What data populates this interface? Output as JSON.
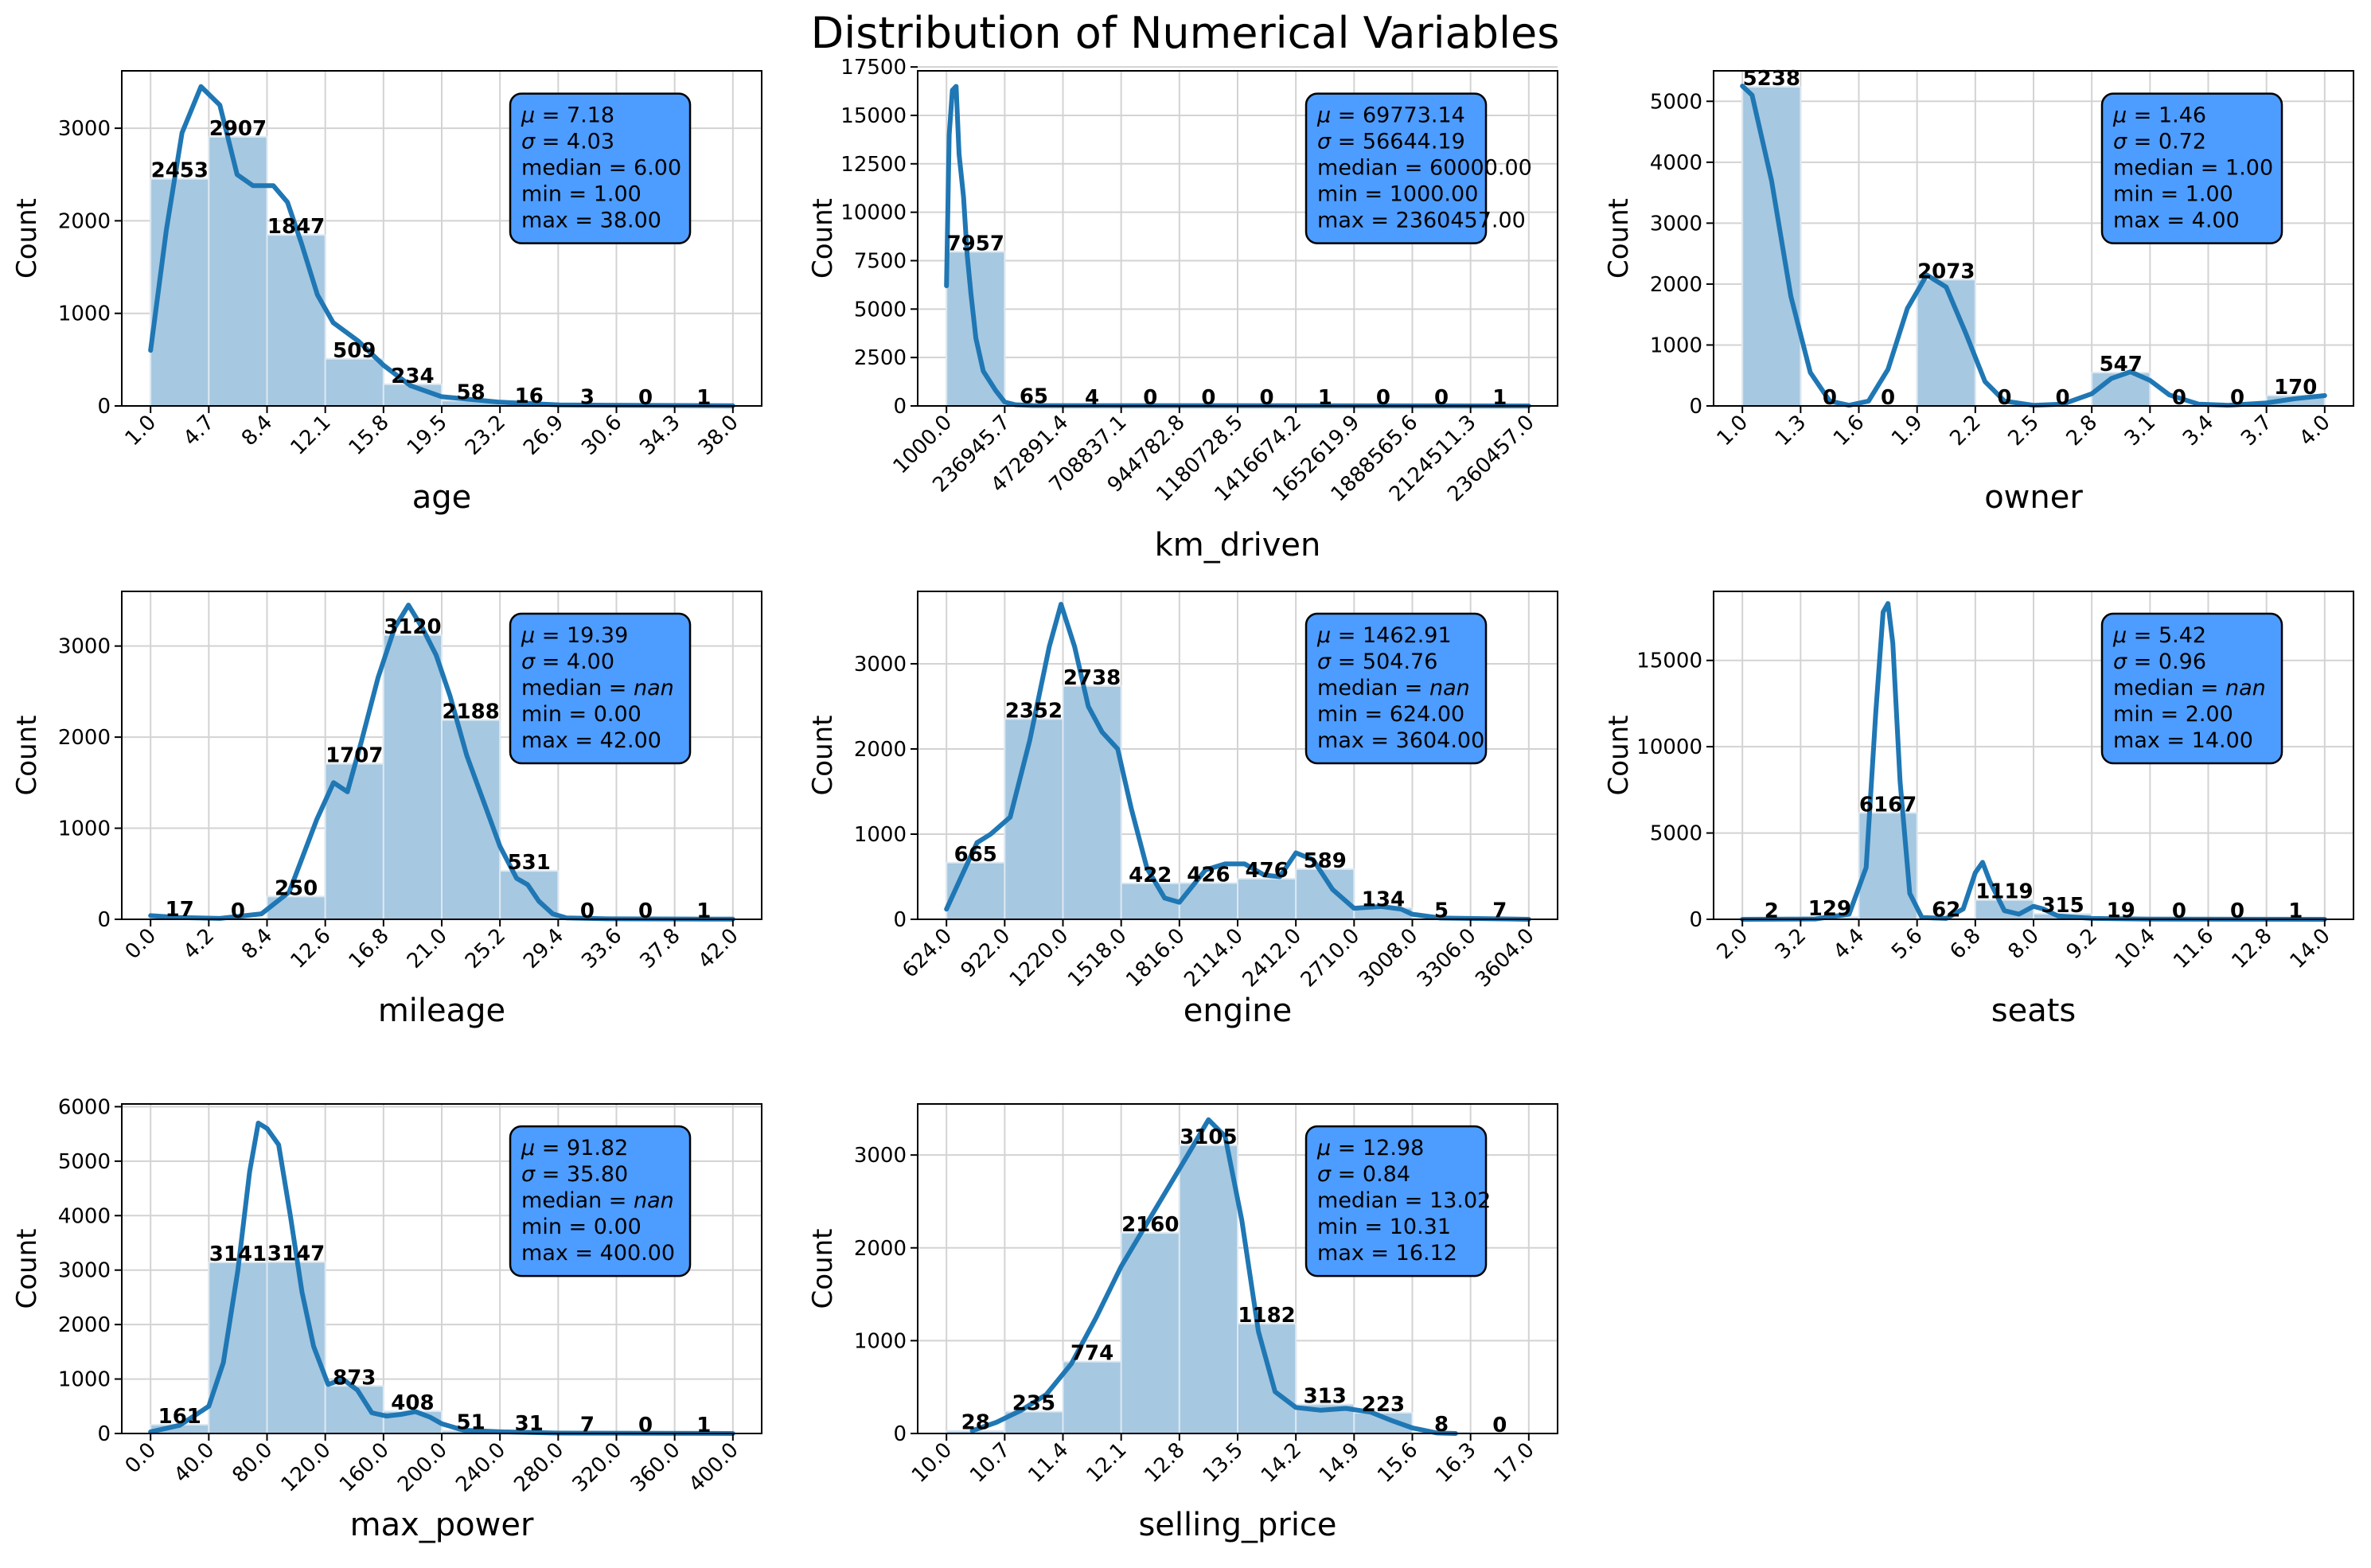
{
  "title": "Distribution of Numerical Variables",
  "colors": {
    "bar": "#a6c8e0",
    "bar_edge": "#dde8f1",
    "kde": "#1f77b4",
    "stat_box": "#4d9cff",
    "grid": "#d3d3d3"
  },
  "chart_data": [
    {
      "type": "bar",
      "xlabel": "age",
      "ylabel": "Count",
      "bin_edges": [
        "1.0",
        "4.7",
        "8.4",
        "12.1",
        "15.8",
        "19.5",
        "23.2",
        "26.9",
        "30.6",
        "34.3",
        "38.0"
      ],
      "counts": [
        2453,
        2907,
        1847,
        509,
        234,
        58,
        16,
        3,
        0,
        1
      ],
      "yticks": [
        "0",
        "1000",
        "2000",
        "3000"
      ],
      "ylim": [
        0,
        3620
      ],
      "kde": [
        [
          1.0,
          600
        ],
        [
          2.0,
          1900
        ],
        [
          3.0,
          2950
        ],
        [
          4.2,
          3450
        ],
        [
          5.4,
          3250
        ],
        [
          6.5,
          2500
        ],
        [
          7.5,
          2380
        ],
        [
          8.8,
          2380
        ],
        [
          9.7,
          2200
        ],
        [
          10.6,
          1750
        ],
        [
          11.6,
          1200
        ],
        [
          12.6,
          900
        ],
        [
          14.2,
          700
        ],
        [
          15.8,
          440
        ],
        [
          17.5,
          220
        ],
        [
          19.5,
          100
        ],
        [
          23.2,
          40
        ],
        [
          27,
          10
        ],
        [
          38,
          2
        ]
      ],
      "stats": {
        "mu": "7.18",
        "sigma": "4.03",
        "median": "6.00",
        "min": "1.00",
        "max": "38.00"
      }
    },
    {
      "type": "bar",
      "xlabel": "km_driven",
      "ylabel": "Count",
      "bin_edges": [
        "1000.0",
        "236945.7",
        "472891.4",
        "708837.1",
        "944782.8",
        "1180728.5",
        "1416674.2",
        "1652619.9",
        "1888565.6",
        "2124511.3",
        "2360457.0"
      ],
      "counts": [
        7957,
        65,
        4,
        0,
        0,
        0,
        1,
        0,
        0,
        1
      ],
      "yticks": [
        "0",
        "2500",
        "5000",
        "7500",
        "10000",
        "12500",
        "15000",
        "17500"
      ],
      "ylim": [
        0,
        17300
      ],
      "kde": [
        [
          1000,
          6200
        ],
        [
          12000,
          14000
        ],
        [
          25000,
          16300
        ],
        [
          40000,
          16500
        ],
        [
          52000,
          13000
        ],
        [
          70000,
          10800
        ],
        [
          85000,
          7800
        ],
        [
          100000,
          5800
        ],
        [
          120000,
          3500
        ],
        [
          150000,
          1800
        ],
        [
          200000,
          800
        ],
        [
          236945,
          200
        ],
        [
          280000,
          60
        ],
        [
          350000,
          20
        ],
        [
          2360457,
          0
        ]
      ],
      "stats": {
        "mu": "69773.14",
        "sigma": "56644.19",
        "median": "60000.00",
        "min": "1000.00",
        "max": "2360457.00"
      }
    },
    {
      "type": "bar",
      "xlabel": "owner",
      "ylabel": "Count",
      "bin_edges": [
        "1.0",
        "1.3",
        "1.6",
        "1.9",
        "2.2",
        "2.5",
        "2.8",
        "3.1",
        "3.4",
        "3.7",
        "4.0"
      ],
      "counts": [
        5238,
        0,
        0,
        2073,
        0,
        0,
        547,
        0,
        0,
        170
      ],
      "yticks": [
        "0",
        "1000",
        "2000",
        "3000",
        "4000",
        "5000"
      ],
      "ylim": [
        0,
        5500
      ],
      "kde": [
        [
          1.0,
          5250
        ],
        [
          1.05,
          5100
        ],
        [
          1.15,
          3700
        ],
        [
          1.25,
          1800
        ],
        [
          1.35,
          550
        ],
        [
          1.45,
          80
        ],
        [
          1.55,
          10
        ],
        [
          1.65,
          80
        ],
        [
          1.75,
          600
        ],
        [
          1.85,
          1600
        ],
        [
          1.95,
          2150
        ],
        [
          2.05,
          1950
        ],
        [
          2.15,
          1200
        ],
        [
          2.25,
          400
        ],
        [
          2.35,
          80
        ],
        [
          2.5,
          10
        ],
        [
          2.65,
          30
        ],
        [
          2.8,
          200
        ],
        [
          2.9,
          450
        ],
        [
          3.0,
          560
        ],
        [
          3.1,
          420
        ],
        [
          3.2,
          180
        ],
        [
          3.35,
          30
        ],
        [
          3.5,
          10
        ],
        [
          3.7,
          50
        ],
        [
          3.85,
          120
        ],
        [
          4.0,
          170
        ]
      ],
      "stats": {
        "mu": "1.46",
        "sigma": "0.72",
        "median": "1.00",
        "min": "1.00",
        "max": "4.00"
      }
    },
    {
      "type": "bar",
      "xlabel": "mileage",
      "ylabel": "Count",
      "bin_edges": [
        "0.0",
        "4.2",
        "8.4",
        "12.6",
        "16.8",
        "21.0",
        "25.2",
        "29.4",
        "33.6",
        "37.8",
        "42.0"
      ],
      "counts": [
        17,
        0,
        250,
        1707,
        3120,
        2188,
        531,
        0,
        0,
        1
      ],
      "yticks": [
        "0",
        "1000",
        "2000",
        "3000"
      ],
      "ylim": [
        0,
        3600
      ],
      "kde": [
        [
          0,
          40
        ],
        [
          2,
          20
        ],
        [
          5,
          10
        ],
        [
          8,
          60
        ],
        [
          10,
          300
        ],
        [
          12,
          1100
        ],
        [
          13.2,
          1500
        ],
        [
          14.2,
          1400
        ],
        [
          15.2,
          1950
        ],
        [
          16.4,
          2650
        ],
        [
          17.6,
          3200
        ],
        [
          18.6,
          3450
        ],
        [
          19.6,
          3200
        ],
        [
          20.6,
          2900
        ],
        [
          21.6,
          2450
        ],
        [
          22.8,
          1800
        ],
        [
          24.0,
          1300
        ],
        [
          25.2,
          800
        ],
        [
          26.4,
          450
        ],
        [
          27.2,
          380
        ],
        [
          28.0,
          200
        ],
        [
          29.0,
          60
        ],
        [
          30,
          15
        ],
        [
          33,
          5
        ],
        [
          42,
          2
        ]
      ],
      "stats": {
        "mu": "19.39",
        "sigma": "4.00",
        "median": "nan",
        "min": "0.00",
        "max": "42.00"
      }
    },
    {
      "type": "bar",
      "xlabel": "engine",
      "ylabel": "Count",
      "bin_edges": [
        "624.0",
        "922.0",
        "1220.0",
        "1518.0",
        "1816.0",
        "2114.0",
        "2412.0",
        "2710.0",
        "3008.0",
        "3306.0",
        "3604.0"
      ],
      "counts": [
        665,
        2352,
        2738,
        422,
        426,
        476,
        589,
        134,
        5,
        7
      ],
      "yticks": [
        "0",
        "1000",
        "2000",
        "3000"
      ],
      "ylim": [
        0,
        3850
      ],
      "kde": [
        [
          624,
          120
        ],
        [
          700,
          500
        ],
        [
          780,
          900
        ],
        [
          850,
          1000
        ],
        [
          950,
          1200
        ],
        [
          1050,
          2100
        ],
        [
          1150,
          3200
        ],
        [
          1210,
          3700
        ],
        [
          1280,
          3200
        ],
        [
          1350,
          2500
        ],
        [
          1420,
          2200
        ],
        [
          1500,
          2000
        ],
        [
          1570,
          1300
        ],
        [
          1650,
          600
        ],
        [
          1740,
          250
        ],
        [
          1816,
          200
        ],
        [
          1950,
          580
        ],
        [
          2050,
          650
        ],
        [
          2150,
          650
        ],
        [
          2250,
          520
        ],
        [
          2330,
          500
        ],
        [
          2412,
          780
        ],
        [
          2500,
          700
        ],
        [
          2600,
          350
        ],
        [
          2710,
          130
        ],
        [
          2850,
          150
        ],
        [
          2950,
          120
        ],
        [
          3008,
          60
        ],
        [
          3150,
          15
        ],
        [
          3604,
          0
        ]
      ],
      "stats": {
        "mu": "1462.91",
        "sigma": "504.76",
        "median": "nan",
        "min": "624.00",
        "max": "3604.00"
      }
    },
    {
      "type": "bar",
      "xlabel": "seats",
      "ylabel": "Count",
      "bin_edges": [
        "2.0",
        "3.2",
        "4.4",
        "5.6",
        "6.8",
        "8.0",
        "9.2",
        "10.4",
        "11.6",
        "12.8",
        "14.0"
      ],
      "counts": [
        2,
        129,
        6167,
        62,
        1119,
        315,
        19,
        0,
        0,
        1
      ],
      "yticks": [
        "0",
        "5000",
        "10000",
        "15000"
      ],
      "ylim": [
        0,
        19000
      ],
      "kde": [
        [
          2,
          0
        ],
        [
          3.5,
          20
        ],
        [
          4.2,
          300
        ],
        [
          4.55,
          3000
        ],
        [
          4.75,
          12000
        ],
        [
          4.9,
          17800
        ],
        [
          5.0,
          18300
        ],
        [
          5.1,
          16000
        ],
        [
          5.25,
          8000
        ],
        [
          5.45,
          1500
        ],
        [
          5.7,
          100
        ],
        [
          6.2,
          50
        ],
        [
          6.55,
          600
        ],
        [
          6.8,
          2700
        ],
        [
          6.95,
          3300
        ],
        [
          7.1,
          2200
        ],
        [
          7.4,
          500
        ],
        [
          7.7,
          300
        ],
        [
          8.0,
          750
        ],
        [
          8.2,
          600
        ],
        [
          8.5,
          200
        ],
        [
          9.2,
          50
        ],
        [
          10.4,
          10
        ],
        [
          14,
          0
        ]
      ],
      "stats": {
        "mu": "5.42",
        "sigma": "0.96",
        "median": "nan",
        "min": "2.00",
        "max": "14.00"
      }
    },
    {
      "type": "bar",
      "xlabel": "max_power",
      "ylabel": "Count",
      "bin_edges": [
        "0.0",
        "40.0",
        "80.0",
        "120.0",
        "160.0",
        "200.0",
        "240.0",
        "280.0",
        "320.0",
        "360.0",
        "400.0"
      ],
      "counts": [
        161,
        3141,
        3147,
        873,
        408,
        51,
        31,
        7,
        0,
        1
      ],
      "bar_labels": [
        "161",
        "3141",
        "3147",
        "873",
        "408",
        "51",
        "31",
        "7",
        "0",
        "1"
      ],
      "yticks": [
        "0",
        "1000",
        "2000",
        "3000",
        "4000",
        "5000",
        "6000"
      ],
      "ylim": [
        0,
        6050
      ],
      "kde": [
        [
          0,
          30
        ],
        [
          20,
          150
        ],
        [
          40,
          500
        ],
        [
          50,
          1300
        ],
        [
          60,
          3000
        ],
        [
          68,
          4800
        ],
        [
          74,
          5700
        ],
        [
          80,
          5600
        ],
        [
          88,
          5300
        ],
        [
          96,
          4000
        ],
        [
          104,
          2600
        ],
        [
          112,
          1600
        ],
        [
          122,
          900
        ],
        [
          132,
          1000
        ],
        [
          142,
          800
        ],
        [
          152,
          380
        ],
        [
          162,
          320
        ],
        [
          172,
          350
        ],
        [
          182,
          400
        ],
        [
          192,
          300
        ],
        [
          200,
          180
        ],
        [
          215,
          60
        ],
        [
          240,
          30
        ],
        [
          280,
          8
        ],
        [
          400,
          0
        ]
      ],
      "stats": {
        "mu": "91.82",
        "sigma": "35.80",
        "median": "nan",
        "min": "0.00",
        "max": "400.00"
      }
    },
    {
      "type": "bar",
      "xlabel": "selling_price",
      "ylabel": "Count",
      "bin_edges": [
        "10.0",
        "10.7",
        "11.4",
        "12.1",
        "12.8",
        "13.5",
        "14.2",
        "14.9",
        "15.6",
        "16.3",
        "17.0"
      ],
      "counts": [
        28,
        235,
        774,
        2160,
        3105,
        1182,
        313,
        223,
        8,
        0
      ],
      "yticks": [
        "0",
        "1000",
        "2000",
        "3000"
      ],
      "ylim": [
        0,
        3550
      ],
      "kde": [
        [
          10.31,
          30
        ],
        [
          10.6,
          120
        ],
        [
          10.9,
          250
        ],
        [
          11.2,
          420
        ],
        [
          11.5,
          750
        ],
        [
          11.8,
          1250
        ],
        [
          12.1,
          1800
        ],
        [
          12.4,
          2250
        ],
        [
          12.7,
          2700
        ],
        [
          12.9,
          3000
        ],
        [
          13.15,
          3380
        ],
        [
          13.35,
          3200
        ],
        [
          13.55,
          2300
        ],
        [
          13.75,
          1100
        ],
        [
          13.95,
          450
        ],
        [
          14.2,
          280
        ],
        [
          14.5,
          250
        ],
        [
          14.8,
          270
        ],
        [
          15.1,
          230
        ],
        [
          15.35,
          140
        ],
        [
          15.6,
          60
        ],
        [
          15.9,
          5
        ],
        [
          16.12,
          0
        ]
      ],
      "stats": {
        "mu": "12.98",
        "sigma": "0.84",
        "median": "13.02",
        "min": "10.31",
        "max": "16.12"
      }
    }
  ]
}
